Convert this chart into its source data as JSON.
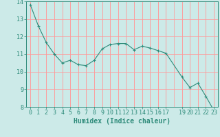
{
  "x": [
    0,
    1,
    2,
    3,
    4,
    5,
    6,
    7,
    8,
    9,
    10,
    11,
    12,
    13,
    14,
    15,
    16,
    17,
    19,
    20,
    21,
    22,
    23
  ],
  "y": [
    13.8,
    12.6,
    11.65,
    11.0,
    10.5,
    10.65,
    10.4,
    10.35,
    10.65,
    11.3,
    11.55,
    11.6,
    11.6,
    11.25,
    11.45,
    11.35,
    11.2,
    11.05,
    9.7,
    9.1,
    9.35,
    8.6,
    7.8
  ],
  "line_color": "#2e8b7a",
  "marker": "+",
  "background_color": "#cceae8",
  "grid_color": "#ff9999",
  "axis_color": "#2e8b7a",
  "tick_color": "#2e8b7a",
  "xlabel": "Humidex (Indice chaleur)",
  "ylabel": "",
  "title": "",
  "ylim": [
    8,
    14
  ],
  "xlim": [
    -0.5,
    23.5
  ],
  "xticks": [
    0,
    1,
    2,
    3,
    4,
    5,
    6,
    7,
    8,
    9,
    10,
    11,
    12,
    13,
    14,
    15,
    16,
    17,
    19,
    20,
    21,
    22,
    23
  ],
  "yticks": [
    8,
    9,
    10,
    11,
    12,
    13,
    14
  ],
  "font_size": 6.0,
  "xlabel_fontsize": 7.0
}
